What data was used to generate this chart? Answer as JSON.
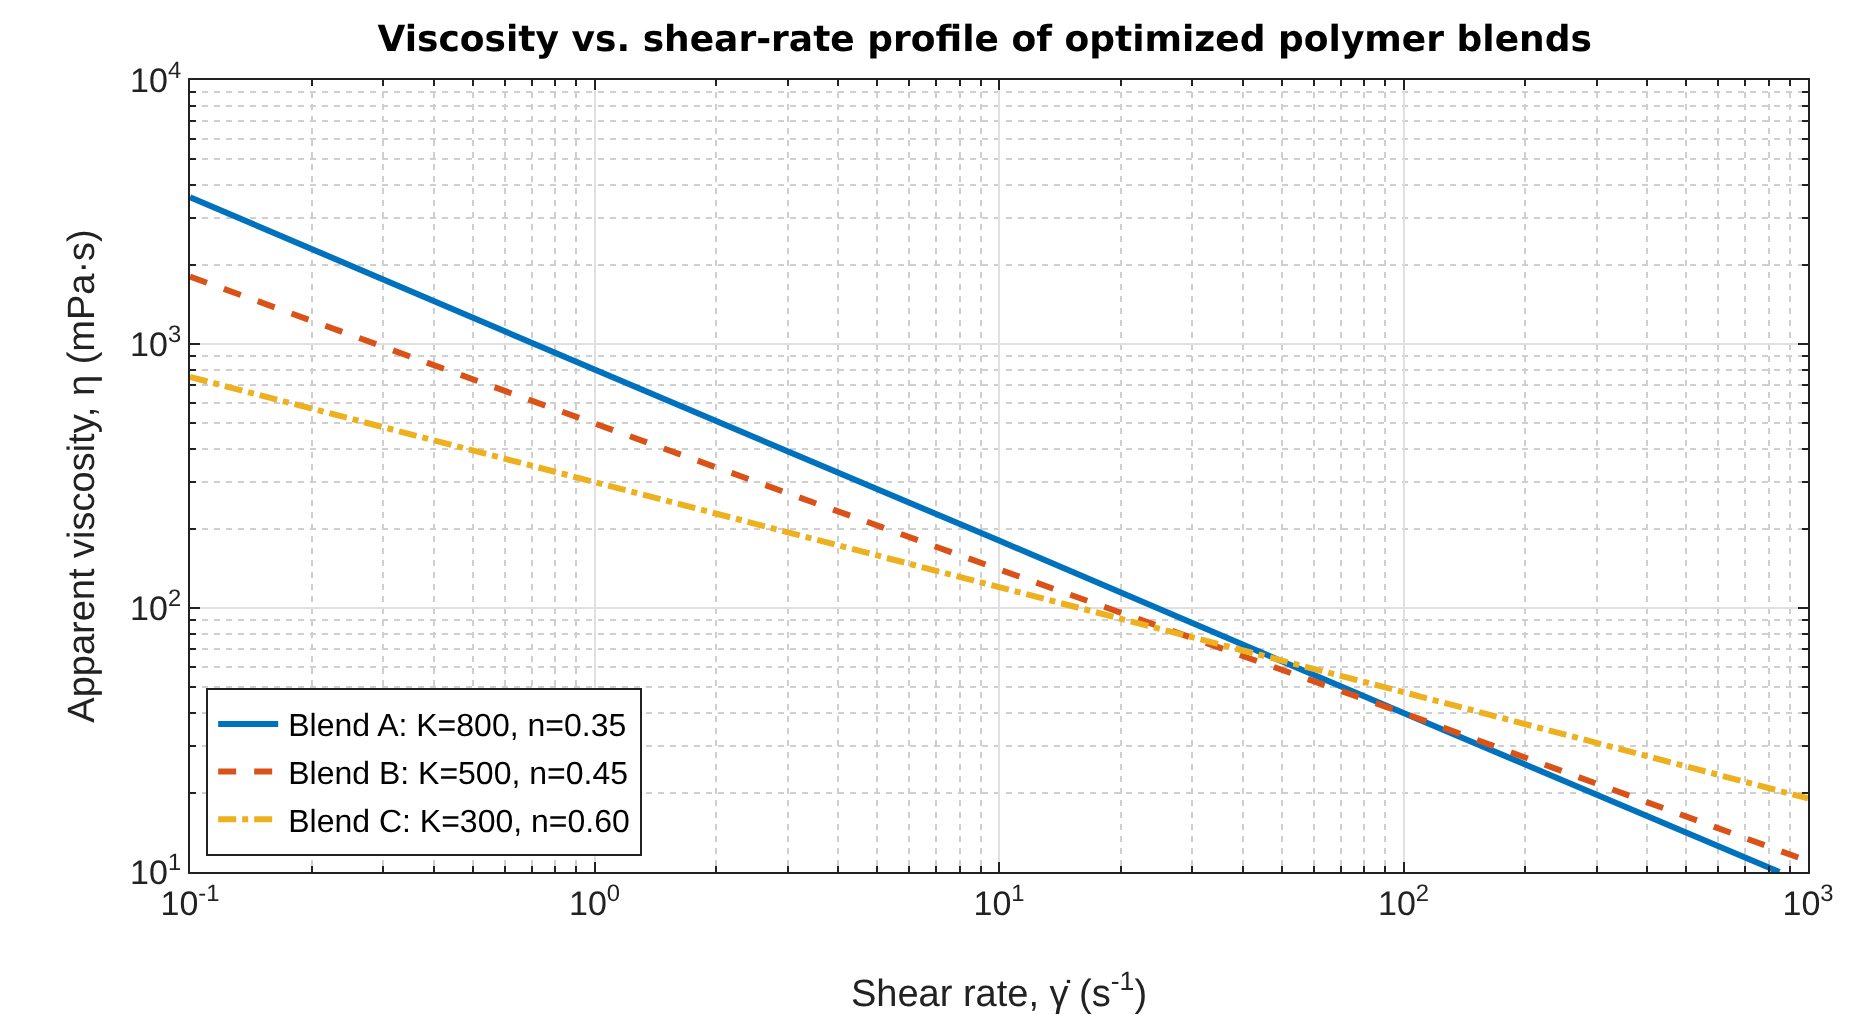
{
  "chart_data": {
    "type": "line",
    "title": "Viscosity vs. shear-rate profile of optimized polymer blends",
    "xlabel": "Shear rate, γ̇ (s$^{-1}$)",
    "ylabel": "Apparent viscosity, η (mPa·s)",
    "x": [
      0.1,
      1,
      10,
      100,
      1000
    ],
    "series": [
      {
        "name": "Blend A: K=800, n=0.35",
        "color": "#0072bd",
        "line_style": "solid",
        "x": [
          0.1,
          1,
          10,
          100,
          850
        ],
        "values": [
          3600,
          800,
          180,
          40,
          10
        ]
      },
      {
        "name": "Blend B: K=500, n=0.45",
        "color": "#d95319",
        "line_style": "dashed",
        "values": [
          1800,
          500,
          140,
          40,
          11
        ]
      },
      {
        "name": "Blend C: K=300, n=0.60",
        "color": "#edb120",
        "line_style": "dashdot",
        "values": [
          750,
          300,
          120,
          48,
          19
        ]
      }
    ],
    "log": "xy",
    "xlim": [
      0.1,
      1000
    ],
    "ylim": [
      10,
      10000
    ],
    "xticks": [
      {
        "value": 0.1,
        "label": "10$^{-1}$"
      },
      {
        "value": 1,
        "label": "10$^{0}$"
      },
      {
        "value": 10,
        "label": "10$^{1}$"
      },
      {
        "value": 100,
        "label": "10$^{2}$"
      },
      {
        "value": 1000,
        "label": "10$^{3}$"
      }
    ],
    "yticks": [
      {
        "value": 10,
        "label": "10$^{1}$"
      },
      {
        "value": 100,
        "label": "10$^{2}$"
      },
      {
        "value": 1000,
        "label": "10$^{3}$"
      },
      {
        "value": 10000,
        "label": "10$^{4}$"
      }
    ],
    "grid": true,
    "legend": "bottom left"
  }
}
